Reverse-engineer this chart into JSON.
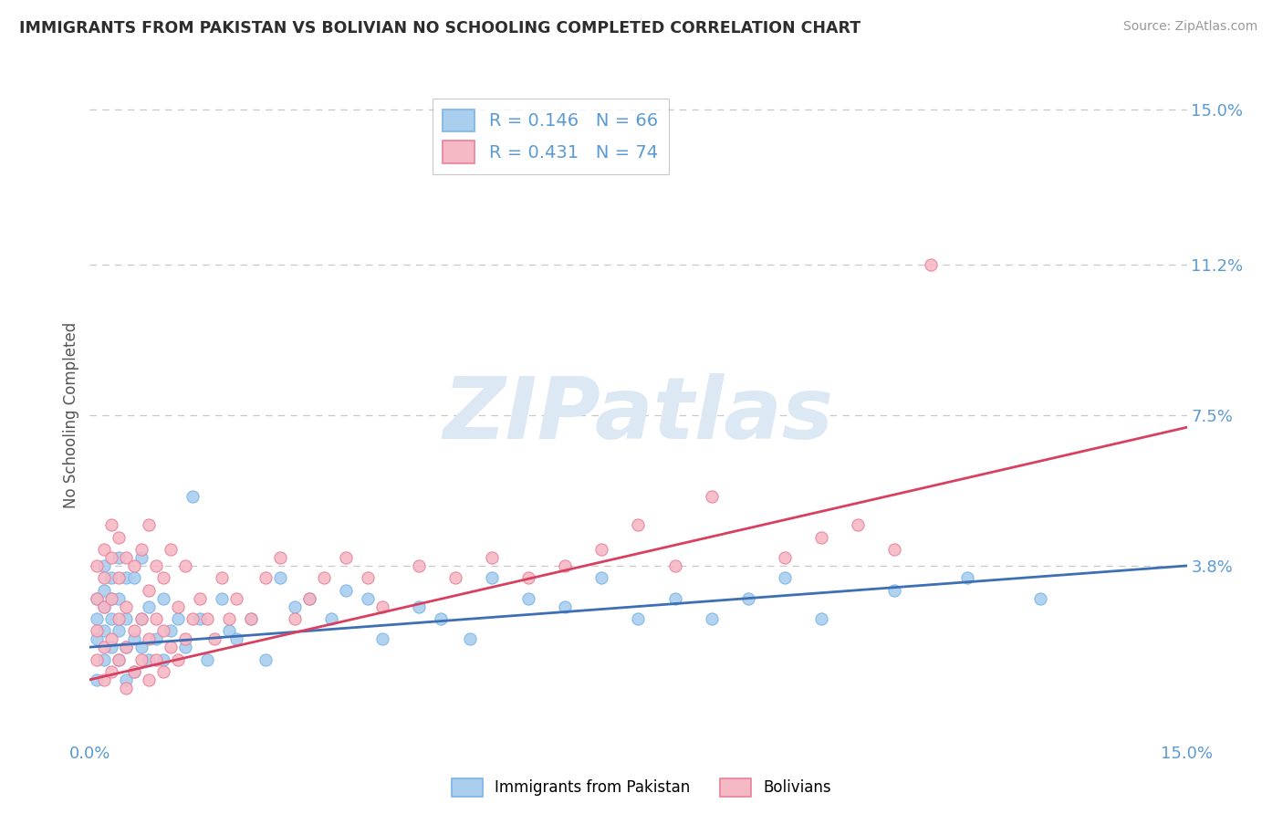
{
  "title": "IMMIGRANTS FROM PAKISTAN VS BOLIVIAN NO SCHOOLING COMPLETED CORRELATION CHART",
  "source": "Source: ZipAtlas.com",
  "ylabel": "No Schooling Completed",
  "xlim": [
    0.0,
    0.15
  ],
  "ylim": [
    -0.005,
    0.155
  ],
  "ytick_values": [
    0.038,
    0.075,
    0.112,
    0.15
  ],
  "ytick_labels": [
    "3.8%",
    "7.5%",
    "11.2%",
    "15.0%"
  ],
  "xtick_values": [
    0.0,
    0.15
  ],
  "xtick_labels": [
    "0.0%",
    "15.0%"
  ],
  "grid_color": "#c8c8c8",
  "background_color": "#ffffff",
  "title_color": "#2d2d2d",
  "ylabel_color": "#555555",
  "tick_color": "#5b9bd5",
  "source_color": "#999999",
  "watermark_text": "ZIPatlas",
  "watermark_color": "#dde8f5",
  "series": [
    {
      "name": "Immigrants from Pakistan",
      "R": "0.146",
      "N": "66",
      "scatter_face": "#aacfee",
      "scatter_edge": "#7ab4e8",
      "trend_color": "#3d6fb5",
      "trend_start_y": 0.018,
      "trend_end_y": 0.038,
      "x": [
        0.001,
        0.001,
        0.001,
        0.001,
        0.002,
        0.002,
        0.002,
        0.002,
        0.002,
        0.003,
        0.003,
        0.003,
        0.003,
        0.004,
        0.004,
        0.004,
        0.004,
        0.005,
        0.005,
        0.005,
        0.005,
        0.006,
        0.006,
        0.006,
        0.007,
        0.007,
        0.007,
        0.008,
        0.008,
        0.009,
        0.01,
        0.01,
        0.011,
        0.012,
        0.013,
        0.014,
        0.015,
        0.016,
        0.018,
        0.019,
        0.02,
        0.022,
        0.024,
        0.026,
        0.028,
        0.03,
        0.033,
        0.035,
        0.038,
        0.04,
        0.045,
        0.048,
        0.052,
        0.055,
        0.06,
        0.065,
        0.07,
        0.075,
        0.08,
        0.085,
        0.09,
        0.095,
        0.1,
        0.11,
        0.12,
        0.13
      ],
      "y": [
        0.01,
        0.02,
        0.025,
        0.03,
        0.015,
        0.022,
        0.028,
        0.032,
        0.038,
        0.018,
        0.025,
        0.03,
        0.035,
        0.015,
        0.022,
        0.03,
        0.04,
        0.01,
        0.018,
        0.025,
        0.035,
        0.012,
        0.02,
        0.035,
        0.018,
        0.025,
        0.04,
        0.015,
        0.028,
        0.02,
        0.015,
        0.03,
        0.022,
        0.025,
        0.018,
        0.055,
        0.025,
        0.015,
        0.03,
        0.022,
        0.02,
        0.025,
        0.015,
        0.035,
        0.028,
        0.03,
        0.025,
        0.032,
        0.03,
        0.02,
        0.028,
        0.025,
        0.02,
        0.035,
        0.03,
        0.028,
        0.035,
        0.025,
        0.03,
        0.025,
        0.03,
        0.035,
        0.025,
        0.032,
        0.035,
        0.03
      ]
    },
    {
      "name": "Bolivians",
      "R": "0.431",
      "N": "74",
      "scatter_face": "#f5b8c5",
      "scatter_edge": "#e8809a",
      "trend_color": "#d84060",
      "trend_start_y": 0.01,
      "trend_end_y": 0.072,
      "x": [
        0.001,
        0.001,
        0.001,
        0.001,
        0.002,
        0.002,
        0.002,
        0.002,
        0.002,
        0.003,
        0.003,
        0.003,
        0.003,
        0.003,
        0.004,
        0.004,
        0.004,
        0.004,
        0.005,
        0.005,
        0.005,
        0.005,
        0.006,
        0.006,
        0.006,
        0.007,
        0.007,
        0.007,
        0.008,
        0.008,
        0.008,
        0.008,
        0.009,
        0.009,
        0.009,
        0.01,
        0.01,
        0.01,
        0.011,
        0.011,
        0.012,
        0.012,
        0.013,
        0.013,
        0.014,
        0.015,
        0.016,
        0.017,
        0.018,
        0.019,
        0.02,
        0.022,
        0.024,
        0.026,
        0.028,
        0.03,
        0.032,
        0.035,
        0.038,
        0.04,
        0.045,
        0.05,
        0.055,
        0.06,
        0.065,
        0.07,
        0.075,
        0.08,
        0.085,
        0.095,
        0.1,
        0.105,
        0.11,
        0.115
      ],
      "y": [
        0.015,
        0.022,
        0.03,
        0.038,
        0.01,
        0.018,
        0.028,
        0.035,
        0.042,
        0.012,
        0.02,
        0.03,
        0.04,
        0.048,
        0.015,
        0.025,
        0.035,
        0.045,
        0.008,
        0.018,
        0.028,
        0.04,
        0.012,
        0.022,
        0.038,
        0.015,
        0.025,
        0.042,
        0.01,
        0.02,
        0.032,
        0.048,
        0.015,
        0.025,
        0.038,
        0.012,
        0.022,
        0.035,
        0.018,
        0.042,
        0.015,
        0.028,
        0.02,
        0.038,
        0.025,
        0.03,
        0.025,
        0.02,
        0.035,
        0.025,
        0.03,
        0.025,
        0.035,
        0.04,
        0.025,
        0.03,
        0.035,
        0.04,
        0.035,
        0.028,
        0.038,
        0.035,
        0.04,
        0.035,
        0.038,
        0.042,
        0.048,
        0.038,
        0.055,
        0.04,
        0.045,
        0.048,
        0.042,
        0.112
      ]
    }
  ]
}
